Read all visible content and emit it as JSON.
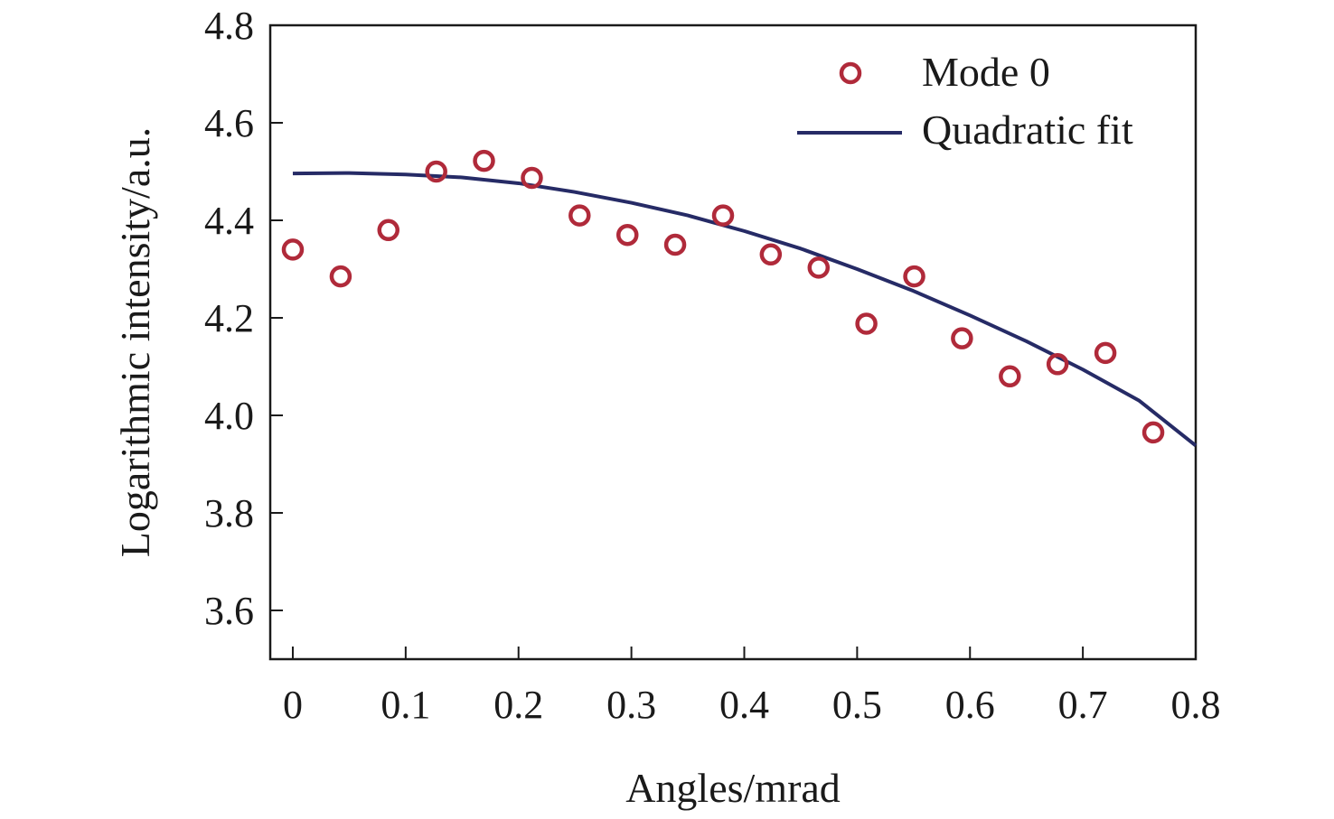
{
  "chart_data": {
    "type": "scatter",
    "xlabel": "Angles/mrad",
    "ylabel": "Logarithmic intensity/a.u.",
    "xlim": [
      -0.02,
      0.8
    ],
    "ylim": [
      3.5,
      4.8
    ],
    "x_ticks": [
      0,
      0.1,
      0.2,
      0.3,
      0.4,
      0.5,
      0.6,
      0.7,
      0.8
    ],
    "x_tick_labels": [
      "0",
      "0.1",
      "0.2",
      "0.3",
      "0.4",
      "0.5",
      "0.6",
      "0.7",
      "0.8"
    ],
    "y_ticks": [
      3.6,
      3.8,
      4.0,
      4.2,
      4.4,
      4.6,
      4.8
    ],
    "y_tick_labels": [
      "3.6",
      "3.8",
      "4.0",
      "4.2",
      "4.4",
      "4.6",
      "4.8"
    ],
    "grid": false,
    "legend_position": "top-right",
    "series": [
      {
        "name": "Mode 0",
        "kind": "markers",
        "marker": "open-circle",
        "color": "#b02a3a",
        "x": [
          0.0,
          0.0424,
          0.0847,
          0.1271,
          0.1694,
          0.2118,
          0.2541,
          0.2965,
          0.3388,
          0.3812,
          0.4235,
          0.4659,
          0.5082,
          0.5506,
          0.5929,
          0.6353,
          0.6776,
          0.72,
          0.7624
        ],
        "y": [
          4.34,
          4.285,
          4.38,
          4.5,
          4.522,
          4.487,
          4.41,
          4.37,
          4.35,
          4.41,
          4.33,
          4.303,
          4.188,
          4.285,
          4.158,
          4.08,
          4.105,
          4.128,
          3.965
        ]
      },
      {
        "name": "Quadratic fit",
        "kind": "line",
        "color": "#262b66",
        "x": [
          0.0,
          0.05,
          0.1,
          0.15,
          0.2,
          0.25,
          0.3,
          0.35,
          0.4,
          0.45,
          0.5,
          0.55,
          0.6,
          0.65,
          0.7,
          0.75,
          0.8
        ],
        "y": [
          4.496,
          4.497,
          4.494,
          4.488,
          4.476,
          4.458,
          4.436,
          4.41,
          4.378,
          4.342,
          4.3,
          4.255,
          4.205,
          4.152,
          4.094,
          4.03,
          3.938
        ]
      }
    ]
  }
}
